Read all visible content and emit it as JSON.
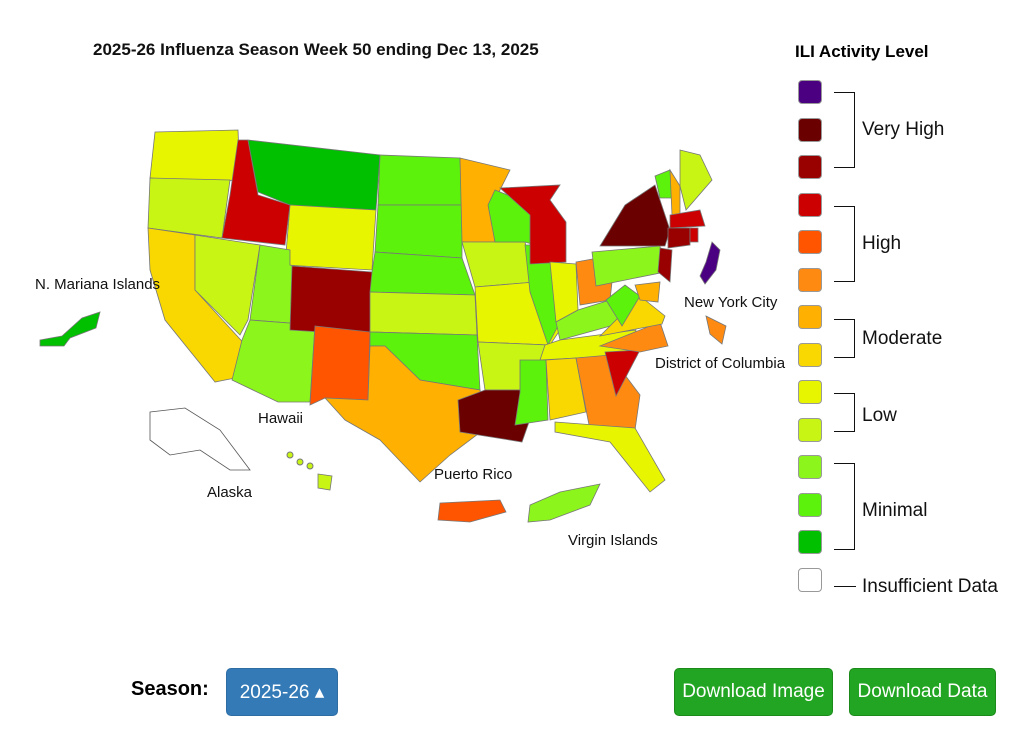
{
  "title": "2025-26 Influenza Season Week 50 ending Dec 13, 2025",
  "legend": {
    "title": "ILI Activity Level",
    "levels": [
      {
        "level": 13,
        "color": "#4b0082"
      },
      {
        "level": 12,
        "color": "#6b0000"
      },
      {
        "level": 11,
        "color": "#990000"
      },
      {
        "level": 10,
        "color": "#cc0000"
      },
      {
        "level": 9,
        "color": "#ff5400"
      },
      {
        "level": 8,
        "color": "#fe8a12"
      },
      {
        "level": 7,
        "color": "#ffb000"
      },
      {
        "level": 6,
        "color": "#f8d800"
      },
      {
        "level": 5,
        "color": "#e8f500"
      },
      {
        "level": 4,
        "color": "#c8f514"
      },
      {
        "level": 3,
        "color": "#8cf51c"
      },
      {
        "level": 2,
        "color": "#5cf20c"
      },
      {
        "level": 1,
        "color": "#00c000"
      },
      {
        "level": 0,
        "color": "#ffffff"
      }
    ],
    "groups": {
      "very_high": "Very High",
      "high": "High",
      "moderate": "Moderate",
      "low": "Low",
      "minimal": "Minimal",
      "insufficient": "Insufficient Data"
    }
  },
  "region_labels": {
    "nmi": "N. Mariana Islands",
    "nyc": "New York City",
    "dc": "District of Columbia",
    "hawaii": "Hawaii",
    "alaska": "Alaska",
    "pr": "Puerto Rico",
    "vi": "Virgin Islands"
  },
  "activity": {
    "WA": 5,
    "OR": 4,
    "CA": 6,
    "ID": 10,
    "NV": 4,
    "MT": 1,
    "WY": 5,
    "UT": 3,
    "AZ": 3,
    "CO": 11,
    "NM": 9,
    "ND": 2,
    "SD": 2,
    "NE": 2,
    "KS": 4,
    "OK": 2,
    "TX": 7,
    "MN": 7,
    "IA": 4,
    "MO": 5,
    "AR": 4,
    "LA": 12,
    "WI": 2,
    "IL": 2,
    "MI": 10,
    "IN": 5,
    "OH": 8,
    "KY": 3,
    "TN": 5,
    "MS": 2,
    "AL": 6,
    "GA": 8,
    "FL": 5,
    "SC": 10,
    "NC": 8,
    "VA": 6,
    "WV": 2,
    "PA": 3,
    "NY": 12,
    "VT": 2,
    "NH": 7,
    "ME": 4,
    "MA": 10,
    "CT": 11,
    "RI": 10,
    "NJ": 11,
    "MD": 7,
    "NYC": 13,
    "DC": 8,
    "PR": 9,
    "VI": 3,
    "HI": 4,
    "AK": 0,
    "NMI": 1
  },
  "controls": {
    "season_label": "Season:",
    "season_value": "2025-26 ▴",
    "download_image": "Download Image",
    "download_data": "Download Data"
  }
}
